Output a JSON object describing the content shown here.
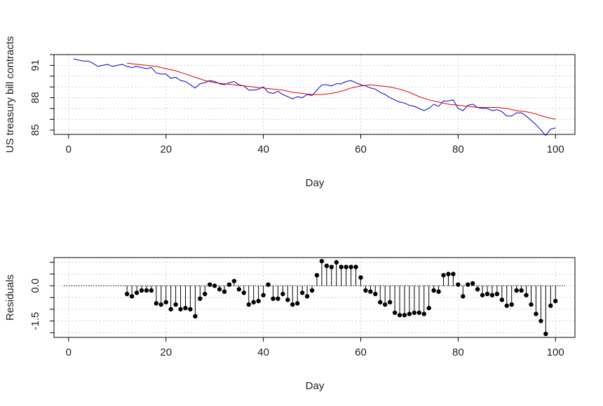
{
  "chart_data": [
    {
      "type": "line",
      "xlabel": "Day",
      "ylabel": "US treasury bill contracts",
      "xlim": [
        -3,
        104
      ],
      "ylim": [
        84.6,
        92.0
      ],
      "x_ticks": [
        0,
        20,
        40,
        60,
        80,
        100
      ],
      "y_ticks": [
        85,
        88,
        91
      ],
      "grid": true,
      "series": [
        {
          "color": "#0000cc",
          "x": [
            1,
            2,
            3,
            4,
            5,
            6,
            7,
            8,
            9,
            10,
            11,
            12,
            13,
            14,
            15,
            16,
            17,
            18,
            19,
            20,
            21,
            22,
            23,
            24,
            25,
            26,
            27,
            28,
            29,
            30,
            31,
            32,
            33,
            34,
            35,
            36,
            37,
            38,
            39,
            40,
            41,
            42,
            43,
            44,
            45,
            46,
            47,
            48,
            49,
            50,
            51,
            52,
            53,
            54,
            55,
            56,
            57,
            58,
            59,
            60,
            61,
            62,
            63,
            64,
            65,
            66,
            67,
            68,
            69,
            70,
            71,
            72,
            73,
            74,
            75,
            76,
            77,
            78,
            79,
            80,
            81,
            82,
            83,
            84,
            85,
            86,
            87,
            88,
            89,
            90,
            91,
            92,
            93,
            94,
            95,
            96,
            97,
            98,
            99,
            100
          ],
          "values": [
            91.6,
            91.5,
            91.4,
            91.4,
            91.2,
            90.9,
            91.0,
            91.1,
            90.9,
            91.0,
            91.1,
            90.9,
            90.8,
            90.9,
            90.8,
            90.7,
            90.8,
            90.3,
            90.2,
            90.2,
            89.8,
            89.9,
            89.6,
            89.5,
            89.2,
            88.9,
            89.3,
            89.4,
            89.6,
            89.5,
            89.3,
            89.2,
            89.4,
            89.5,
            89.2,
            89.1,
            88.7,
            88.7,
            88.8,
            89.0,
            88.5,
            88.4,
            88.6,
            88.3,
            88.1,
            87.9,
            88.1,
            88.0,
            88.3,
            88.2,
            88.7,
            89.2,
            89.2,
            89.1,
            89.3,
            89.3,
            89.5,
            89.6,
            89.4,
            89.2,
            89.1,
            88.9,
            88.8,
            88.5,
            88.3,
            88.0,
            87.8,
            87.6,
            87.5,
            87.3,
            87.2,
            87.0,
            86.8,
            87.0,
            87.4,
            87.2,
            87.7,
            87.7,
            87.8,
            87.0,
            86.8,
            87.3,
            87.4,
            87.1,
            87.0,
            87.0,
            86.8,
            86.9,
            86.7,
            86.3,
            86.3,
            86.6,
            86.6,
            86.3,
            85.9,
            85.5,
            85.0,
            84.5,
            85.1,
            85.2
          ]
        },
        {
          "color": "#dd0000",
          "x": [
            12,
            14,
            16,
            18,
            20,
            22,
            24,
            26,
            28,
            30,
            32,
            34,
            36,
            38,
            40,
            42,
            44,
            46,
            48,
            50,
            52,
            54,
            56,
            58,
            60,
            62,
            64,
            66,
            68,
            70,
            72,
            74,
            76,
            78,
            80,
            82,
            84,
            86,
            88,
            90,
            92,
            94,
            96,
            98,
            100
          ],
          "values": [
            91.2,
            91.1,
            91.0,
            90.9,
            90.7,
            90.5,
            90.2,
            89.9,
            89.6,
            89.4,
            89.3,
            89.2,
            89.1,
            89.0,
            88.9,
            88.8,
            88.7,
            88.5,
            88.4,
            88.3,
            88.3,
            88.4,
            88.6,
            88.9,
            89.1,
            89.2,
            89.1,
            89.0,
            88.8,
            88.5,
            88.1,
            87.8,
            87.6,
            87.4,
            87.3,
            87.2,
            87.1,
            87.1,
            87.1,
            87.0,
            86.8,
            86.7,
            86.5,
            86.2,
            86.0
          ]
        }
      ]
    },
    {
      "type": "scatter",
      "xlabel": "Day",
      "ylabel": "Residuals",
      "xlim": [
        -3,
        104
      ],
      "ylim": [
        -2.2,
        1.2
      ],
      "x_ticks": [
        0,
        20,
        40,
        60,
        80,
        100
      ],
      "y_ticks": [
        0.0,
        -1.5
      ],
      "y_tick_labels": [
        "0.0",
        "-1.5"
      ],
      "baseline": 0,
      "grid": true,
      "x": [
        12,
        13,
        14,
        15,
        16,
        17,
        18,
        19,
        20,
        21,
        22,
        23,
        24,
        25,
        26,
        27,
        28,
        29,
        30,
        31,
        32,
        33,
        34,
        35,
        36,
        37,
        38,
        39,
        40,
        41,
        42,
        43,
        44,
        45,
        46,
        47,
        48,
        49,
        50,
        51,
        52,
        53,
        54,
        55,
        56,
        57,
        58,
        59,
        60,
        61,
        62,
        63,
        64,
        65,
        66,
        67,
        68,
        69,
        70,
        71,
        72,
        73,
        74,
        75,
        76,
        77,
        78,
        79,
        80,
        81,
        82,
        83,
        84,
        85,
        86,
        87,
        88,
        89,
        90,
        91,
        92,
        93,
        94,
        95,
        96,
        97,
        98,
        99,
        100
      ],
      "values": [
        -0.35,
        -0.45,
        -0.3,
        -0.2,
        -0.2,
        -0.2,
        -0.75,
        -0.8,
        -0.7,
        -1.0,
        -0.8,
        -1.0,
        -0.95,
        -1.0,
        -1.3,
        -0.55,
        -0.35,
        0.05,
        0.0,
        -0.15,
        -0.25,
        0.05,
        0.2,
        -0.15,
        -0.3,
        -0.8,
        -0.7,
        -0.65,
        -0.4,
        0.05,
        -0.55,
        -0.55,
        -0.35,
        -0.6,
        -0.8,
        -0.75,
        -0.3,
        -0.45,
        -0.2,
        0.45,
        1.05,
        0.85,
        0.8,
        1.0,
        0.8,
        0.8,
        0.8,
        0.8,
        0.35,
        -0.2,
        -0.25,
        -0.35,
        -0.7,
        -0.8,
        -0.7,
        -1.15,
        -1.25,
        -1.25,
        -1.2,
        -1.15,
        -1.15,
        -1.2,
        -0.95,
        -0.2,
        -0.25,
        0.45,
        0.5,
        0.5,
        0.05,
        -0.45,
        0.05,
        0.1,
        -0.15,
        -0.4,
        -0.35,
        -0.4,
        -0.35,
        -0.6,
        -0.85,
        -0.8,
        -0.2,
        -0.2,
        -0.4,
        -0.8,
        -1.2,
        -1.5,
        -2.05,
        -0.85,
        -0.65
      ]
    }
  ]
}
